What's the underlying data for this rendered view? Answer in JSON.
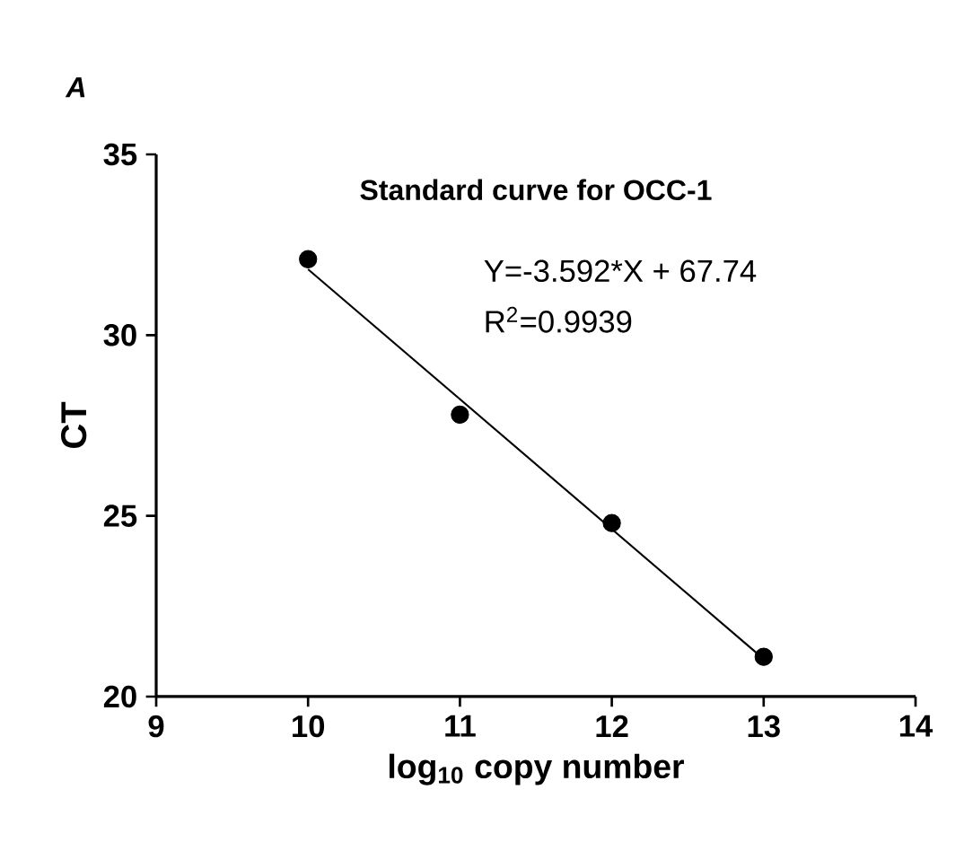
{
  "chart_data": {
    "type": "scatter",
    "title": "Standard curve for OCC-1",
    "xlabel": "log$_{10}$ copy number",
    "ylabel": "CT",
    "annotations": [
      "A",
      "Y=-3.592*X + 67.74",
      "R$^{2}$=0.9939"
    ],
    "xlim": [
      9,
      14
    ],
    "xticks": [
      9,
      10,
      11,
      12,
      13,
      14
    ],
    "ylim": [
      20,
      35
    ],
    "yticks": [
      20,
      25,
      30,
      35
    ],
    "grid": false,
    "marker": "circle",
    "series": [
      {
        "color": "#000000",
        "x": [
          10,
          11,
          12,
          13
        ],
        "values": [
          32.1,
          27.8,
          24.8,
          21.1
        ]
      },
      {
        "type": "line",
        "color": "#000000",
        "marker": "none",
        "line_style": "solid",
        "x": [
          10,
          13
        ],
        "values": [
          31.82,
          21.04
        ]
      }
    ]
  }
}
